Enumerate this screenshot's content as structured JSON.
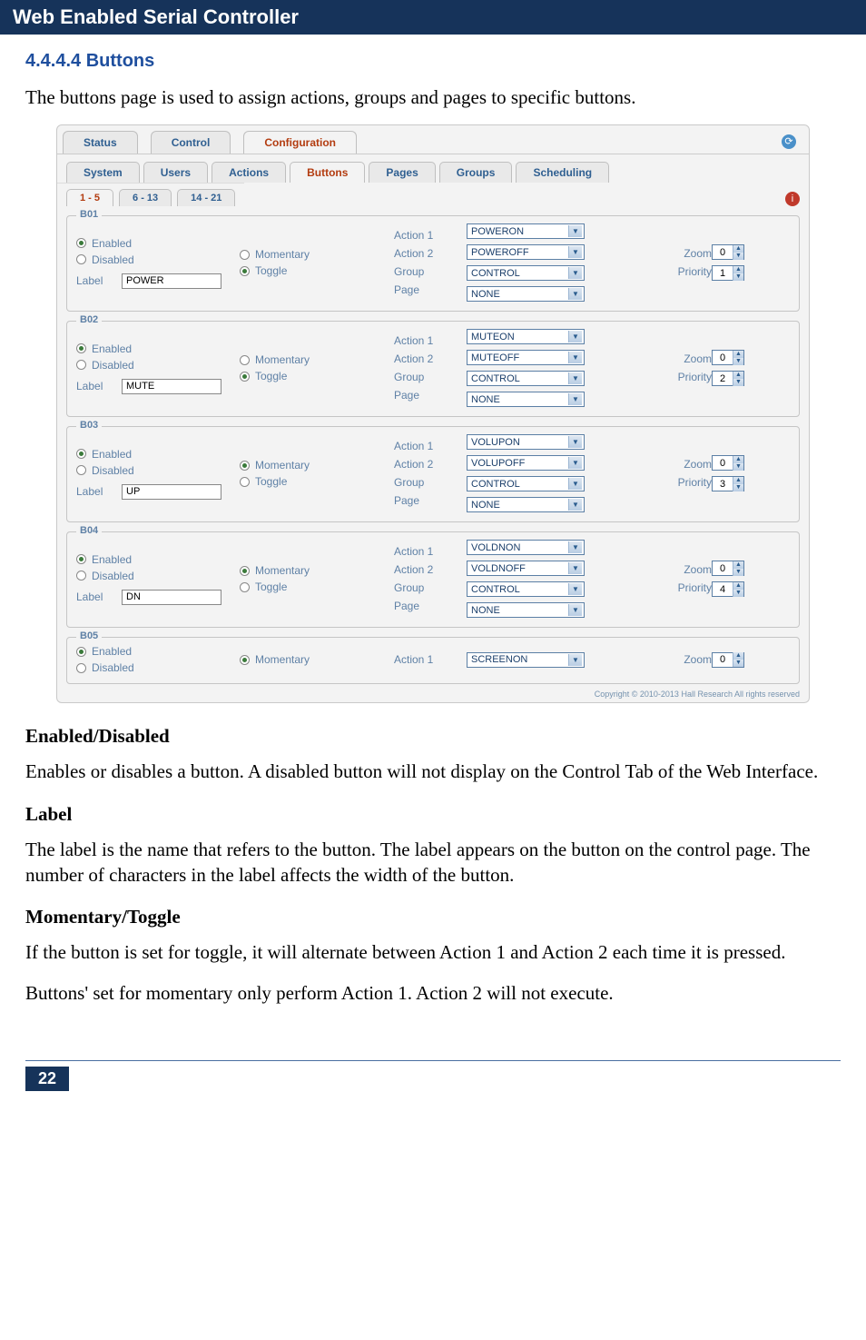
{
  "header": {
    "title": "Web Enabled Serial Controller"
  },
  "section": {
    "number": "4.4.4.4 Buttons",
    "intro": "The buttons page is used to assign actions, groups and pages to specific buttons."
  },
  "outer_tabs": {
    "items": [
      {
        "label": "Status",
        "active": false
      },
      {
        "label": "Control",
        "active": false
      },
      {
        "label": "Configuration",
        "active": true
      }
    ]
  },
  "inner_tabs": {
    "items": [
      {
        "label": "System",
        "active": false
      },
      {
        "label": "Users",
        "active": false
      },
      {
        "label": "Actions",
        "active": false
      },
      {
        "label": "Buttons",
        "active": true
      },
      {
        "label": "Pages",
        "active": false
      },
      {
        "label": "Groups",
        "active": false
      },
      {
        "label": "Scheduling",
        "active": false
      }
    ]
  },
  "range_tabs": {
    "items": [
      {
        "label": "1 - 5",
        "active": true
      },
      {
        "label": "6 - 13",
        "active": false
      },
      {
        "label": "14 - 21",
        "active": false
      }
    ]
  },
  "labels": {
    "enabled": "Enabled",
    "disabled": "Disabled",
    "momentary": "Momentary",
    "toggle": "Toggle",
    "label": "Label",
    "action1": "Action 1",
    "action2": "Action 2",
    "group": "Group",
    "page": "Page",
    "zoom": "Zoom",
    "priority": "Priority"
  },
  "buttons_list": [
    {
      "id": "B01",
      "enabled": true,
      "mode": "toggle",
      "label": "POWER",
      "action1": "POWERON",
      "action2": "POWEROFF",
      "group": "CONTROL",
      "page": "NONE",
      "zoom": "0",
      "priority": "1"
    },
    {
      "id": "B02",
      "enabled": true,
      "mode": "toggle",
      "label": "MUTE",
      "action1": "MUTEON",
      "action2": "MUTEOFF",
      "group": "CONTROL",
      "page": "NONE",
      "zoom": "0",
      "priority": "2"
    },
    {
      "id": "B03",
      "enabled": true,
      "mode": "momentary",
      "label": "UP",
      "action1": "VOLUPON",
      "action2": "VOLUPOFF",
      "group": "CONTROL",
      "page": "NONE",
      "zoom": "0",
      "priority": "3"
    },
    {
      "id": "B04",
      "enabled": true,
      "mode": "momentary",
      "label": "DN",
      "action1": "VOLDNON",
      "action2": "VOLDNOFF",
      "group": "CONTROL",
      "page": "NONE",
      "zoom": "0",
      "priority": "4"
    },
    {
      "id": "B05",
      "enabled": true,
      "mode": "momentary",
      "label": "",
      "action1": "SCREENON",
      "action2": "",
      "group": "",
      "page": "",
      "zoom": "0",
      "priority": ""
    }
  ],
  "copyright": "Copyright © 2010-2013 Hall Research All rights reserved",
  "desc": {
    "ed_head": "Enabled/Disabled",
    "ed_body": "Enables or disables a button. A disabled button will not display on the Control Tab of the Web Interface.",
    "lbl_head": "Label",
    "lbl_body": "The label is the name that refers to the button. The label appears on the button on the control page. The number of characters in the label affects the width of the button.",
    "mt_head": "Momentary/Toggle",
    "mt_body1": "If the button is set for toggle, it will alternate between Action 1 and Action 2 each time it is pressed.",
    "mt_body2": "Buttons' set for momentary only perform Action 1. Action 2 will not execute."
  },
  "page_number": "22"
}
